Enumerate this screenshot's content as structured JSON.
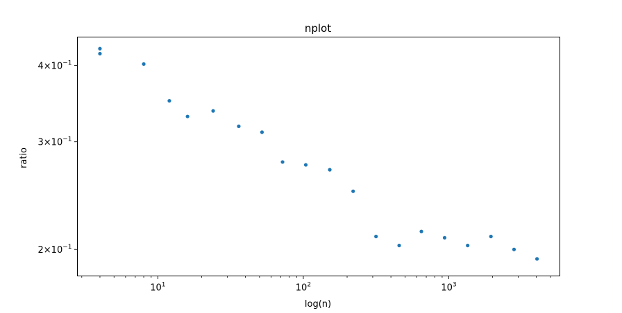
{
  "chart_data": {
    "type": "scatter",
    "title": "nplot",
    "xlabel": "log(n)",
    "ylabel": "ratio",
    "xscale": "log",
    "yscale": "log",
    "xlim": [
      2.8,
      5800
    ],
    "ylim": [
      0.181,
      0.445
    ],
    "grid": false,
    "marker_color": "#1f77b4",
    "x_ticks": [
      {
        "value": 10,
        "base": "10",
        "exp": "1"
      },
      {
        "value": 100,
        "base": "10",
        "exp": "2"
      },
      {
        "value": 1000,
        "base": "10",
        "exp": "3"
      }
    ],
    "y_ticks": [
      {
        "value": 0.4,
        "mantissa": "4",
        "base": "10",
        "exp": "−1"
      },
      {
        "value": 0.3,
        "mantissa": "3",
        "base": "10",
        "exp": "−1"
      },
      {
        "value": 0.2,
        "mantissa": "2",
        "base": "10",
        "exp": "−1"
      }
    ],
    "series": [
      {
        "x": [
          4,
          4,
          8,
          12,
          16,
          24,
          36,
          52,
          72,
          104,
          152,
          220,
          316,
          456,
          648,
          936,
          1348,
          1948,
          2808,
          4040
        ],
        "y": [
          0.426,
          0.418,
          0.402,
          0.35,
          0.33,
          0.337,
          0.318,
          0.311,
          0.278,
          0.275,
          0.27,
          0.249,
          0.21,
          0.203,
          0.214,
          0.209,
          0.203,
          0.21,
          0.2,
          0.193
        ]
      }
    ]
  }
}
